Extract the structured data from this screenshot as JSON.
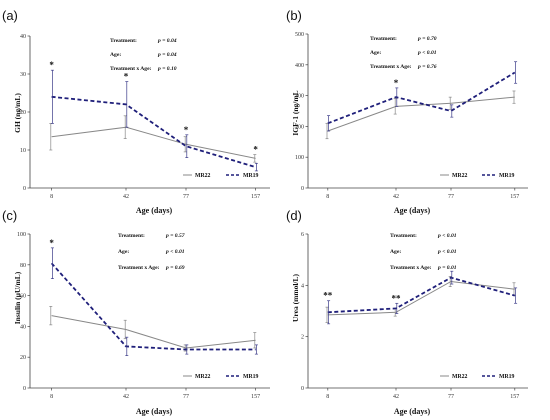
{
  "series_style": {
    "MR22": {
      "color": "#888888",
      "dash": "solid"
    },
    "MR19": {
      "color": "#1f1f7a",
      "dash": "dashed"
    }
  },
  "chart_data": [
    {
      "panel": "(a)",
      "type": "line",
      "ylabel": "GH (ng/mL)",
      "xlabel": "Age (days)",
      "categories": [
        "8",
        "42",
        "77",
        "157"
      ],
      "ylim": [
        0,
        40
      ],
      "yticks": [
        "0",
        "10",
        "20",
        "30",
        "40"
      ],
      "series": [
        {
          "name": "MR22",
          "values": [
            13.5,
            16,
            11.5,
            7.8
          ],
          "err": [
            3.5,
            3,
            2,
            1
          ]
        },
        {
          "name": "MR19",
          "values": [
            24,
            22,
            11,
            5.5
          ],
          "err": [
            7,
            6,
            3,
            1
          ]
        }
      ],
      "stats": [
        {
          "label": "Treatment:",
          "value": "p = 0.04"
        },
        {
          "label": "Age:",
          "value": "p = 0.04"
        },
        {
          "label": "Treatment x Age:",
          "value": "p = 0.10"
        }
      ],
      "markers": [
        {
          "category": 0,
          "text": "*"
        },
        {
          "category": 1,
          "text": "*"
        },
        {
          "category": 2,
          "text": "*"
        },
        {
          "category": 3,
          "text": "*"
        }
      ]
    },
    {
      "panel": "(b)",
      "type": "line",
      "ylabel": "IGF-1 (ng/mL",
      "xlabel": "Age (days)",
      "categories": [
        "8",
        "42",
        "77",
        "157"
      ],
      "ylim": [
        0,
        500
      ],
      "yticks": [
        "0",
        "100",
        "200",
        "300",
        "400",
        "500"
      ],
      "series": [
        {
          "name": "MR22",
          "values": [
            185,
            265,
            275,
            295
          ],
          "err": [
            25,
            25,
            20,
            20
          ]
        },
        {
          "name": "MR19",
          "values": [
            210,
            295,
            250,
            375
          ],
          "err": [
            25,
            30,
            20,
            35
          ]
        }
      ],
      "stats": [
        {
          "label": "Treatment:",
          "value": "p = 0.70"
        },
        {
          "label": "Age:",
          "value": "p < 0.01"
        },
        {
          "label": "Treatment x Age:",
          "value": "p = 0.76"
        }
      ],
      "markers": [
        {
          "category": 1,
          "text": "*"
        }
      ]
    },
    {
      "panel": "(c)",
      "type": "line",
      "ylabel": "Insulin (µU/mL)",
      "xlabel": "Age (days)",
      "categories": [
        "8",
        "42",
        "77",
        "157"
      ],
      "ylim": [
        0,
        100
      ],
      "yticks": [
        "0",
        "20",
        "40",
        "60",
        "80",
        "100"
      ],
      "series": [
        {
          "name": "MR22",
          "values": [
            47,
            38,
            26,
            31
          ],
          "err": [
            6,
            6,
            2,
            5
          ]
        },
        {
          "name": "MR19",
          "values": [
            81,
            27,
            25,
            25
          ],
          "err": [
            10,
            6,
            3,
            3
          ]
        }
      ],
      "stats": [
        {
          "label": "Treatment:",
          "value": "p = 0.57"
        },
        {
          "label": "Age:",
          "value": "p < 0.01"
        },
        {
          "label": "Treatment x Age:",
          "value": "p = 0.69"
        }
      ],
      "markers": [
        {
          "category": 0,
          "text": "*"
        }
      ]
    },
    {
      "panel": "(d)",
      "type": "line",
      "ylabel": "Urea (mmol/L)",
      "xlabel": "Age (days)",
      "categories": [
        "8",
        "42",
        "77",
        "157"
      ],
      "ylim": [
        0,
        6
      ],
      "yticks": [
        "0",
        "2",
        "4",
        "6"
      ],
      "series": [
        {
          "name": "MR22",
          "values": [
            2.85,
            2.95,
            4.15,
            3.85
          ],
          "err": [
            0.3,
            0.15,
            0.2,
            0.25
          ]
        },
        {
          "name": "MR19",
          "values": [
            2.95,
            3.1,
            4.3,
            3.6
          ],
          "err": [
            0.45,
            0.2,
            0.25,
            0.3
          ]
        }
      ],
      "stats": [
        {
          "label": "Treatment:",
          "value": "p < 0.01"
        },
        {
          "label": "Age:",
          "value": "p < 0.01"
        },
        {
          "label": "Treatment x Age:",
          "value": "p = 0.01"
        }
      ],
      "markers": [
        {
          "category": 0,
          "text": "**"
        },
        {
          "category": 1,
          "text": "**"
        }
      ]
    }
  ]
}
